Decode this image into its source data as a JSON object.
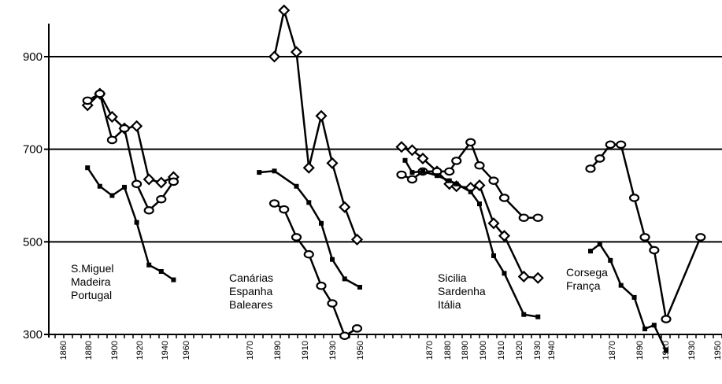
{
  "chart_data": {
    "type": "line",
    "title": "",
    "xlabel": "",
    "ylabel": "",
    "ylim": [
      300,
      1000
    ],
    "yticks": [
      300,
      500,
      700,
      900
    ],
    "grid": "horizontal",
    "groups": [
      {
        "labels": [
          "S.Miguel",
          "Madeira",
          "Portugal"
        ],
        "xticks": [
          "1860",
          "1880",
          "1900",
          "1920",
          "1940",
          "1960"
        ],
        "series": [
          {
            "marker": "diamond",
            "x": [
              1880,
              1890,
              1900,
              1910,
              1920,
              1930,
              1940,
              1950
            ],
            "y": [
              795,
              820,
              770,
              745,
              750,
              635,
              628,
              640
            ]
          },
          {
            "marker": "circle",
            "x": [
              1880,
              1890,
              1900,
              1910,
              1920,
              1930,
              1940,
              1950
            ],
            "y": [
              805,
              820,
              720,
              745,
              625,
              568,
              592,
              630
            ]
          },
          {
            "marker": "square",
            "x": [
              1880,
              1890,
              1900,
              1910,
              1920,
              1930,
              1940,
              1950
            ],
            "y": [
              660,
              620,
              600,
              618,
              542,
              450,
              436,
              418
            ]
          }
        ]
      },
      {
        "labels": [
          "Canárias",
          "Espanha",
          "Baleares"
        ],
        "xticks": [
          "1870",
          "1890",
          "1910",
          "1930",
          "1950"
        ],
        "series": [
          {
            "marker": "diamond",
            "x": [
              1888,
              1895,
              1904,
              1913,
              1922,
              1930,
              1939,
              1948
            ],
            "y": [
              900,
              1000,
              910,
              660,
              772,
              670,
              575,
              505
            ]
          },
          {
            "marker": "circle",
            "x": [
              1888,
              1895,
              1904,
              1913,
              1922,
              1930,
              1939,
              1948
            ],
            "y": [
              583,
              570,
              510,
              473,
              405,
              367,
              297,
              313
            ]
          },
          {
            "marker": "square",
            "x": [
              1877,
              1888,
              1904,
              1913,
              1922,
              1930,
              1939,
              1950
            ],
            "y": [
              650,
              653,
              620,
              585,
              540,
              462,
              420,
              402
            ]
          }
        ]
      },
      {
        "labels": [
          "Sicilia",
          "Sardenha",
          "Itália"
        ],
        "xticks": [
          "1870",
          "1880",
          "1890",
          "1900",
          "1910",
          "1920",
          "1930",
          "1940"
        ],
        "series": [
          {
            "marker": "diamond",
            "x": [
              1860,
              1866,
              1872,
              1880,
              1887,
              1891,
              1899,
              1904,
              1912,
              1918,
              1929,
              1937
            ],
            "y": [
              705,
              698,
              680,
              652,
              625,
              620,
              617,
              622,
              540,
              513,
              425,
              422
            ]
          },
          {
            "marker": "circle",
            "x": [
              1860,
              1866,
              1872,
              1880,
              1887,
              1891,
              1899,
              1904,
              1912,
              1918,
              1929,
              1937
            ],
            "y": [
              645,
              635,
              652,
              652,
              652,
              675,
              715,
              665,
              632,
              595,
              552,
              552
            ]
          },
          {
            "marker": "square",
            "x": [
              1862,
              1866,
              1872,
              1880,
              1887,
              1891,
              1899,
              1904,
              1912,
              1918,
              1929,
              1937
            ],
            "y": [
              676,
              650,
              652,
              643,
              632,
              625,
              608,
              582,
              470,
              432,
              343,
              338
            ]
          }
        ]
      },
      {
        "labels": [
          "Corsega",
          "França"
        ],
        "xticks": [
          "1870",
          "1890",
          "1910",
          "1930",
          "1950"
        ],
        "series": [
          {
            "marker": "circle",
            "x": [
              1855,
              1862,
              1870,
              1878,
              1888,
              1896,
              1903,
              1912,
              1938
            ],
            "y": [
              658,
              680,
              710,
              710,
              595,
              510,
              482,
              333,
              510
            ]
          },
          {
            "marker": "square",
            "x": [
              1855,
              1862,
              1870,
              1878,
              1888,
              1896,
              1903,
              1912
            ],
            "y": [
              480,
              495,
              460,
              406,
              380,
              312,
              320,
              265
            ]
          }
        ]
      }
    ]
  }
}
